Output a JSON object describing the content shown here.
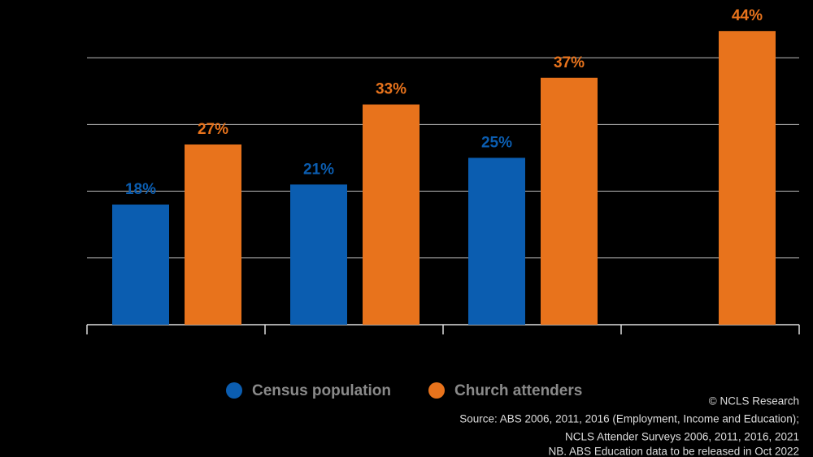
{
  "chart_data": {
    "type": "bar",
    "categories": [
      null,
      null,
      null,
      null
    ],
    "series": [
      {
        "name": "Census population",
        "color": "#0b5db0",
        "values": [
          18,
          21,
          25,
          null
        ],
        "value_labels": [
          "18%",
          "21%",
          "25%",
          null
        ]
      },
      {
        "name": "Church attenders",
        "color": "#e8731c",
        "values": [
          27,
          33,
          37,
          44
        ],
        "value_labels": [
          "27%",
          "33%",
          "37%",
          "44%"
        ]
      }
    ],
    "ylim": [
      0,
      45
    ],
    "yticks": [
      10,
      20,
      30,
      40
    ],
    "grid": true,
    "legend": "bottom",
    "notes": [
      "© NCLS Research",
      "Source: ABS 2006, 2011, 2016 (Employment, Income and Education);",
      "NCLS Attender Surveys 2006, 2011, 2016, 2021",
      "NB. ABS Education data to be released in Oct 2022"
    ]
  }
}
